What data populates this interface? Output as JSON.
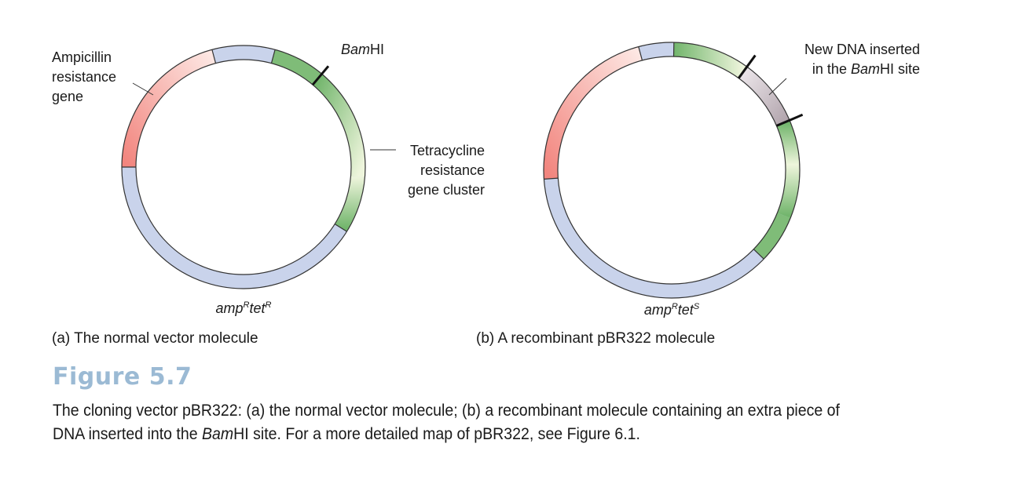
{
  "panel_a": {
    "label_amp": [
      "Ampicillin",
      "resistance",
      "gene"
    ],
    "label_bam_italic": "Bam",
    "label_bam_rest": "HI",
    "label_tet": [
      "Tetracycline",
      "resistance",
      "gene cluster"
    ],
    "genotype": {
      "g1": "amp",
      "s1": "R",
      "g2": "tet",
      "s2": "R"
    },
    "caption": "(a) The normal vector molecule"
  },
  "panel_b": {
    "label_insert_line1": "New DNA inserted",
    "label_insert_pre": "in the ",
    "label_insert_italic": "Bam",
    "label_insert_post": "HI site",
    "genotype": {
      "g1": "amp",
      "s1": "R",
      "g2": "tet",
      "s2": "S"
    },
    "caption": "(b) A recombinant pBR322 molecule"
  },
  "figure": {
    "title": "Figure 5.7",
    "caption_line1": "The cloning vector pBR322: (a) the normal vector molecule; (b) a recombinant molecule containing an extra piece of",
    "caption_line2_pre": "DNA inserted into the ",
    "caption_line2_italic": "Bam",
    "caption_line2_post": "HI site. For a more detailed map of pBR322, see Figure 6.1."
  },
  "colors": {
    "backbone": "#c9d3eb",
    "amp_dark": "#f2857e",
    "amp_light": "#fde6e2",
    "tet_dark": "#72b56c",
    "tet_light": "#eef5dc",
    "insert_dark": "#b3a6ae",
    "insert_light": "#ebe5e9",
    "title": "#9bbad4"
  }
}
